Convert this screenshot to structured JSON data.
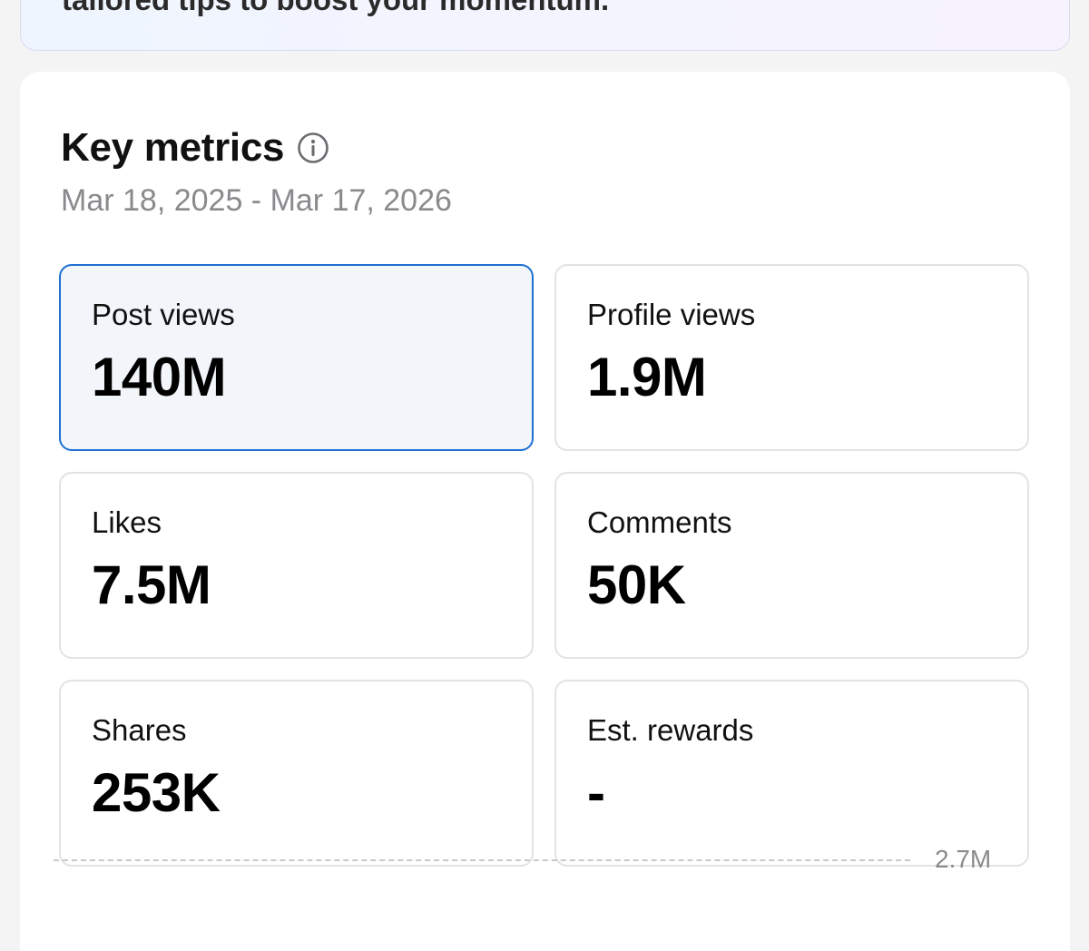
{
  "banner": {
    "text": "tailored tips to boost your momentum."
  },
  "key_metrics": {
    "title": "Key metrics",
    "date_range": "Mar 18, 2025 - Mar 17, 2026",
    "tiles": [
      {
        "label": "Post views",
        "value": "140M",
        "selected": true
      },
      {
        "label": "Profile views",
        "value": "1.9M",
        "selected": false
      },
      {
        "label": "Likes",
        "value": "7.5M",
        "selected": false
      },
      {
        "label": "Comments",
        "value": "50K",
        "selected": false
      },
      {
        "label": "Shares",
        "value": "253K",
        "selected": false
      },
      {
        "label": "Est. rewards",
        "value": "-",
        "selected": false
      }
    ]
  },
  "chart": {
    "y_max_label": "2.7M"
  },
  "colors": {
    "selected_border": "#1f6fd1",
    "selected_bg": "#f2f6fb",
    "muted_text": "#8a8a8e"
  }
}
